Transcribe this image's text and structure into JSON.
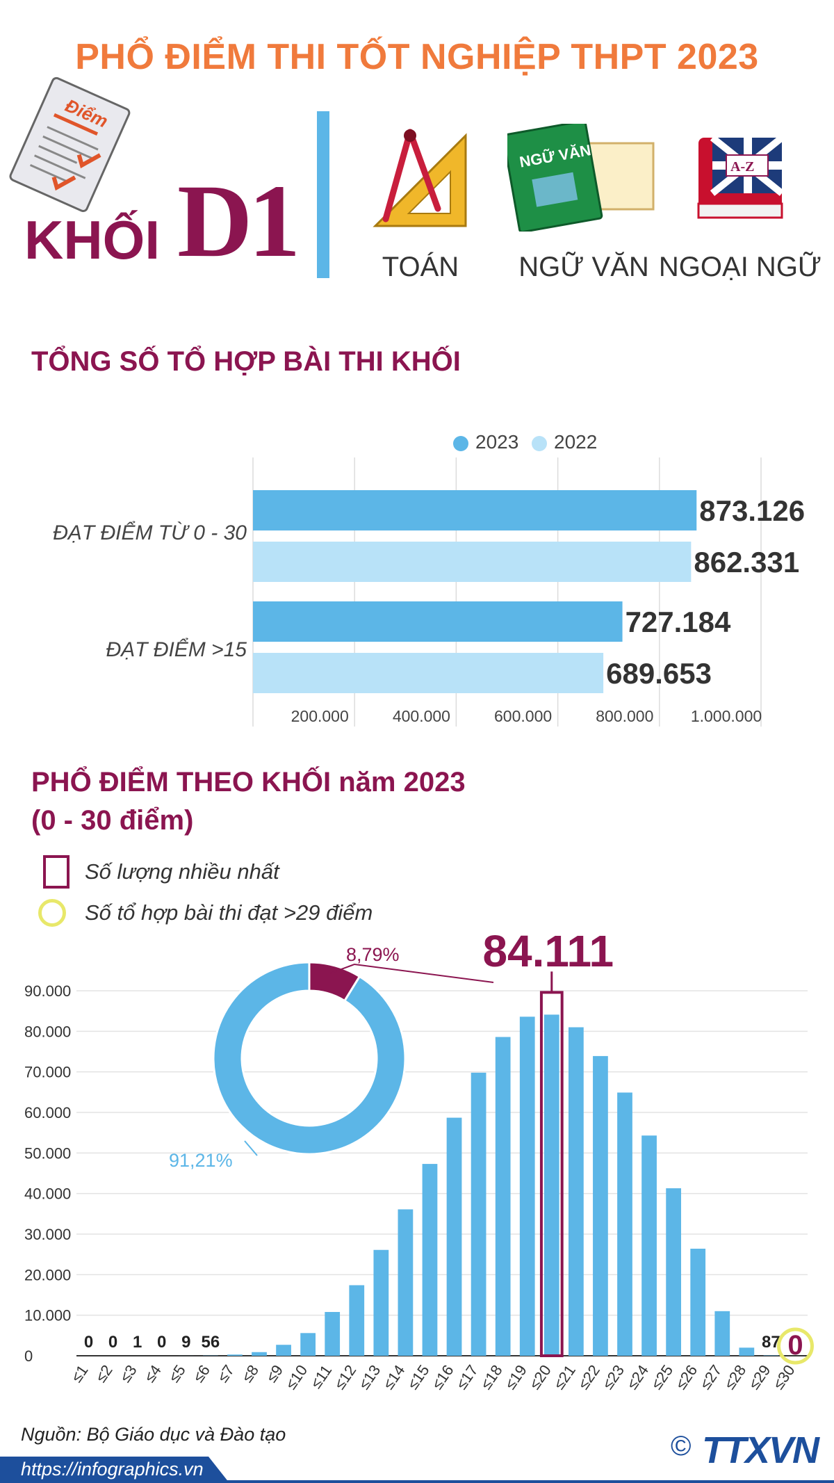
{
  "header": {
    "title": "PHỔ ĐIỂM THI TỐT NGHIỆP THPT 2023",
    "khoi_label": "KHỐI",
    "khoi_code": "D1",
    "note_label": "Điểm",
    "book_label": "NGỮ VĂN",
    "az_label": "A-Z",
    "subjects": [
      "TOÁN",
      "NGỮ VĂN",
      "NGOẠI NGỮ"
    ]
  },
  "section1": {
    "title": "TỔNG SỐ TỔ HỢP BÀI THI KHỐI"
  },
  "section2": {
    "title_line1": "PHỔ ĐIỂM THEO KHỐI năm 2023",
    "title_line2": "(0 - 30 điểm)",
    "legend_max": "Số lượng nhiều nhất",
    "legend_over29": "Số tổ hợp bài thi đạt >29 điểm"
  },
  "footer": {
    "source": "Nguồn: Bộ Giáo dục và Đào tạo",
    "url": "https://infographics.vn",
    "agency": "TTXVN",
    "copyright": "©"
  },
  "colors": {
    "primary": "#5cb6e7",
    "light": "#b8e2f8",
    "accent": "#8b1550",
    "orange": "#f07a3c",
    "yellow": "#e8e86a"
  },
  "chart_data": [
    {
      "type": "bar",
      "orientation": "horizontal",
      "categories": [
        "ĐẠT ĐIỂM TỪ 0 - 30",
        "ĐẠT ĐIỂM >15"
      ],
      "series": [
        {
          "name": "2023",
          "values": [
            873126,
            727184
          ],
          "labels": [
            "873.126",
            "727.184"
          ]
        },
        {
          "name": "2022",
          "values": [
            862331,
            689653
          ],
          "labels": [
            "862.331",
            "689.653"
          ]
        }
      ],
      "xlim": [
        0,
        1000000
      ],
      "xticks": [
        "200.000",
        "400.000",
        "600.000",
        "800.000",
        "1.000.000"
      ],
      "legend": "top-center",
      "grid": true
    },
    {
      "type": "bar",
      "categories": [
        "≤1",
        "≤2",
        "≤3",
        "≤4",
        "≤5",
        "≤6",
        "≤7",
        "≤8",
        "≤9",
        "≤10",
        "≤11",
        "≤12",
        "≤13",
        "≤14",
        "≤15",
        "≤16",
        "≤17",
        "≤18",
        "≤19",
        "≤20",
        "≤21",
        "≤22",
        "≤23",
        "≤24",
        "≤25",
        "≤26",
        "≤27",
        "≤28",
        "≤29",
        "≤30"
      ],
      "values": [
        0,
        0,
        1,
        0,
        9,
        56,
        300,
        900,
        2700,
        5600,
        10800,
        17400,
        26100,
        36100,
        47300,
        58700,
        69800,
        78600,
        83600,
        84111,
        81000,
        73900,
        64900,
        54300,
        41300,
        26400,
        11000,
        2000,
        87,
        0
      ],
      "labeled_values": [
        "0",
        "0",
        "1",
        "0",
        "9",
        "56"
      ],
      "max_label": "84.111",
      "over29_label": "0",
      "last_labels": [
        "87"
      ],
      "ylim": [
        0,
        90000
      ],
      "yticks": [
        "0",
        "10.000",
        "20.000",
        "30.000",
        "40.000",
        "50.000",
        "60.000",
        "70.000",
        "80.000",
        "90.000"
      ],
      "grid": true
    },
    {
      "type": "pie",
      "style": "donut",
      "values": [
        8.79,
        91.21
      ],
      "labels": [
        "8,79%",
        "91,21%"
      ]
    }
  ]
}
